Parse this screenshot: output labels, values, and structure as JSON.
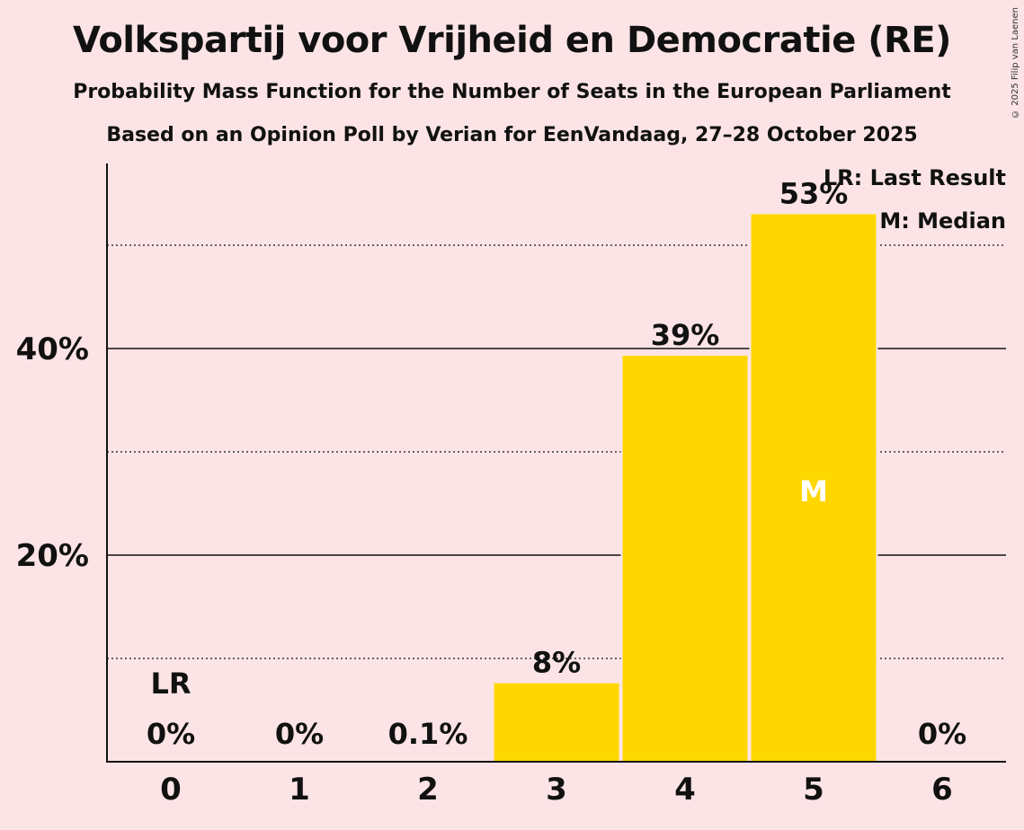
{
  "title": "Volkspartij voor Vrijheid en Democratie (RE)",
  "subtitle": "Probability Mass Function for the Number of Seats in the European Parliament",
  "subtitle2": "Based on an Opinion Poll by Verian for EenVandaag, 27–28 October 2025",
  "copyright": "© 2025 Filip van Laenen",
  "legend": {
    "last_result": "LR: Last Result",
    "median": "M: Median"
  },
  "colors": {
    "background": "#fce4e6",
    "bar": "#ffd700",
    "text": "#111111"
  },
  "chart_data": {
    "type": "bar",
    "title": "Volkspartij voor Vrijheid en Democratie (RE)",
    "xlabel": "",
    "ylabel": "",
    "categories": [
      "0",
      "1",
      "2",
      "3",
      "4",
      "5",
      "6"
    ],
    "values": [
      0,
      0,
      0.1,
      7.6,
      39.3,
      53.0,
      0
    ],
    "value_labels": [
      "0%",
      "0%",
      "0.1%",
      "8%",
      "39%",
      "53%",
      "0%"
    ],
    "y_ticks": [
      20,
      40
    ],
    "y_tick_labels": [
      "20%",
      "40%"
    ],
    "y_minor_ticks": [
      10,
      30,
      50
    ],
    "ylim": [
      0,
      57.5
    ],
    "last_result_index": 0,
    "last_result_label": "LR",
    "median_index": 5,
    "median_label": "M"
  }
}
